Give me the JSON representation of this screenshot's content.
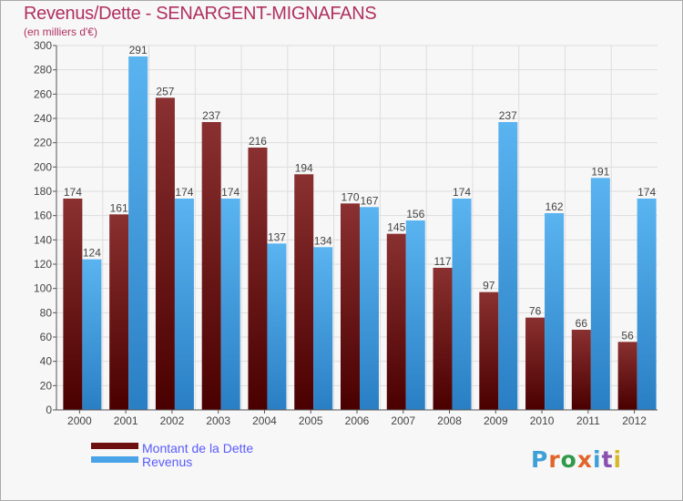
{
  "header": {
    "title": "Revenus/Dette - SENARGENT-MIGNAFANS",
    "subtitle": "(en milliers d'€)"
  },
  "chart_data": {
    "type": "bar",
    "categories": [
      "2000",
      "2001",
      "2002",
      "2003",
      "2004",
      "2005",
      "2006",
      "2007",
      "2008",
      "2009",
      "2010",
      "2011",
      "2012"
    ],
    "series": [
      {
        "name": "Montant de la Dette",
        "values": [
          174,
          161,
          257,
          237,
          216,
          194,
          170,
          145,
          117,
          97,
          76,
          66,
          56
        ],
        "color": "#7a1a1a"
      },
      {
        "name": "Revenus",
        "values": [
          124,
          291,
          174,
          174,
          137,
          134,
          167,
          156,
          174,
          237,
          162,
          191,
          174
        ],
        "color": "#4aa3e6"
      }
    ],
    "ylim": [
      0,
      300
    ],
    "yticks": [
      0,
      20,
      40,
      60,
      80,
      100,
      120,
      140,
      160,
      180,
      200,
      220,
      240,
      260,
      280,
      300
    ],
    "grid": true,
    "legend_position": "bottom-left"
  },
  "legend": {
    "items": [
      {
        "label": "Montant de la Dette",
        "color": "#6b0f0f"
      },
      {
        "label": "Revenus",
        "color": "#4aa3e6"
      }
    ]
  },
  "logo": {
    "letters": [
      "P",
      "r",
      "o",
      "x",
      "i",
      "t",
      "i"
    ],
    "colors": [
      "#3fa0d8",
      "#e0662a",
      "#2e9a4a",
      "#e0662a",
      "#3fa0d8",
      "#8a4fb0",
      "#d8b82a"
    ]
  }
}
